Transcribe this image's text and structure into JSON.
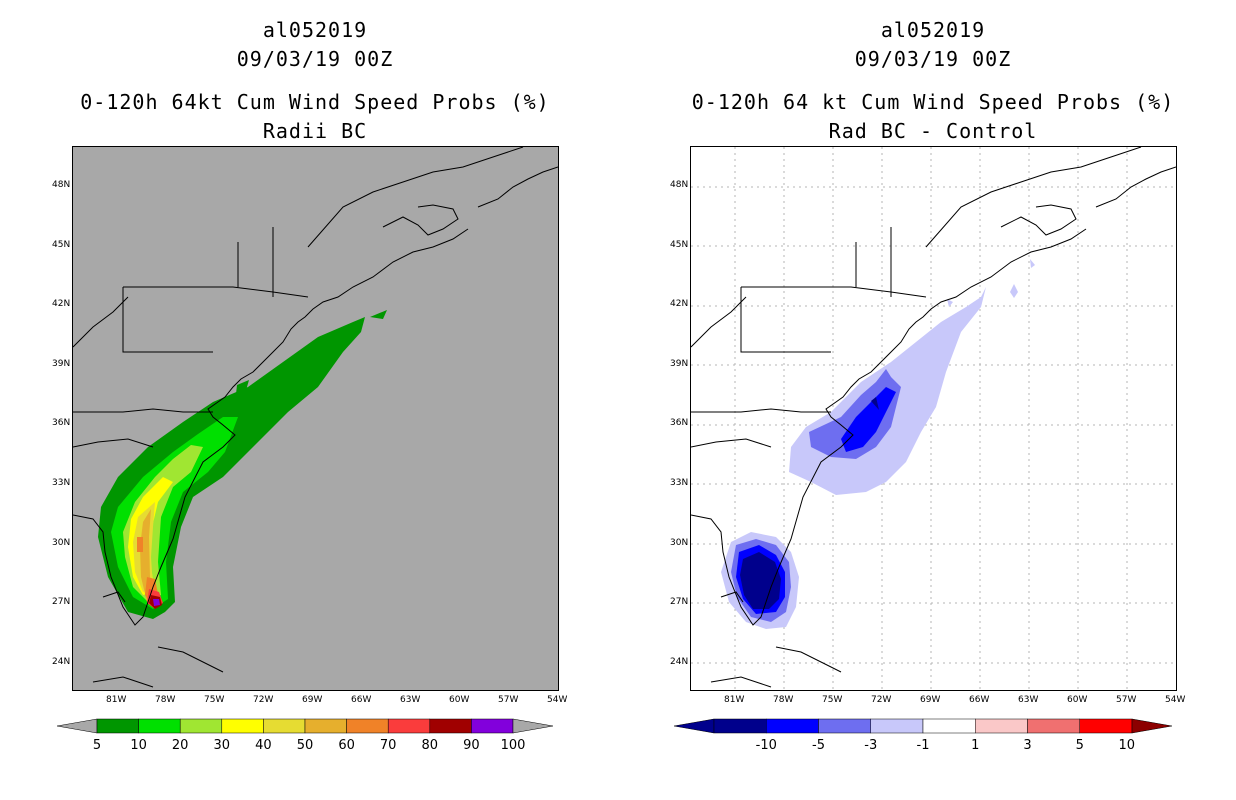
{
  "left_panel": {
    "storm_id": "al052019",
    "date": "09/03/19 00Z",
    "title": "0-120h 64kt Cum Wind Speed Probs (%)",
    "subtitle": "Radii BC",
    "background": "#a8a8a8",
    "lat_labels": [
      "48N",
      "45N",
      "42N",
      "39N",
      "36N",
      "33N",
      "30N",
      "27N",
      "24N"
    ],
    "lon_labels": [
      "81W",
      "78W",
      "75W",
      "72W",
      "69W",
      "66W",
      "63W",
      "60W",
      "57W",
      "54W"
    ],
    "colorbar": {
      "colors": [
        "#009600",
        "#00e000",
        "#a0e632",
        "#ffff00",
        "#e6dc32",
        "#e6af2d",
        "#f08228",
        "#fa3c3c",
        "#a00000",
        "#8200dc"
      ],
      "end_color": "#a8a8a8",
      "labels": [
        "5",
        "10",
        "20",
        "30",
        "40",
        "50",
        "60",
        "70",
        "80",
        "90",
        "100"
      ]
    }
  },
  "right_panel": {
    "storm_id": "al052019",
    "date": "09/03/19 00Z",
    "title": "0-120h 64 kt Cum Wind Speed Probs (%)",
    "subtitle": "Rad BC - Control",
    "background": "#ffffff",
    "lat_labels": [
      "48N",
      "45N",
      "42N",
      "39N",
      "36N",
      "33N",
      "30N",
      "27N",
      "24N"
    ],
    "lon_labels": [
      "81W",
      "78W",
      "75W",
      "72W",
      "69W",
      "66W",
      "63W",
      "60W",
      "57W",
      "54W"
    ],
    "colorbar": {
      "colors": [
        "#00008c",
        "#0000ff",
        "#6e6ef0",
        "#c8c8fa",
        "#ffffff",
        "#fac8c8",
        "#f07070",
        "#ff0000"
      ],
      "low_color": "#00008c",
      "high_color": "#8c0000",
      "labels": [
        "-10",
        "-5",
        "-3",
        "-1",
        "1",
        "3",
        "5",
        "10"
      ]
    }
  }
}
